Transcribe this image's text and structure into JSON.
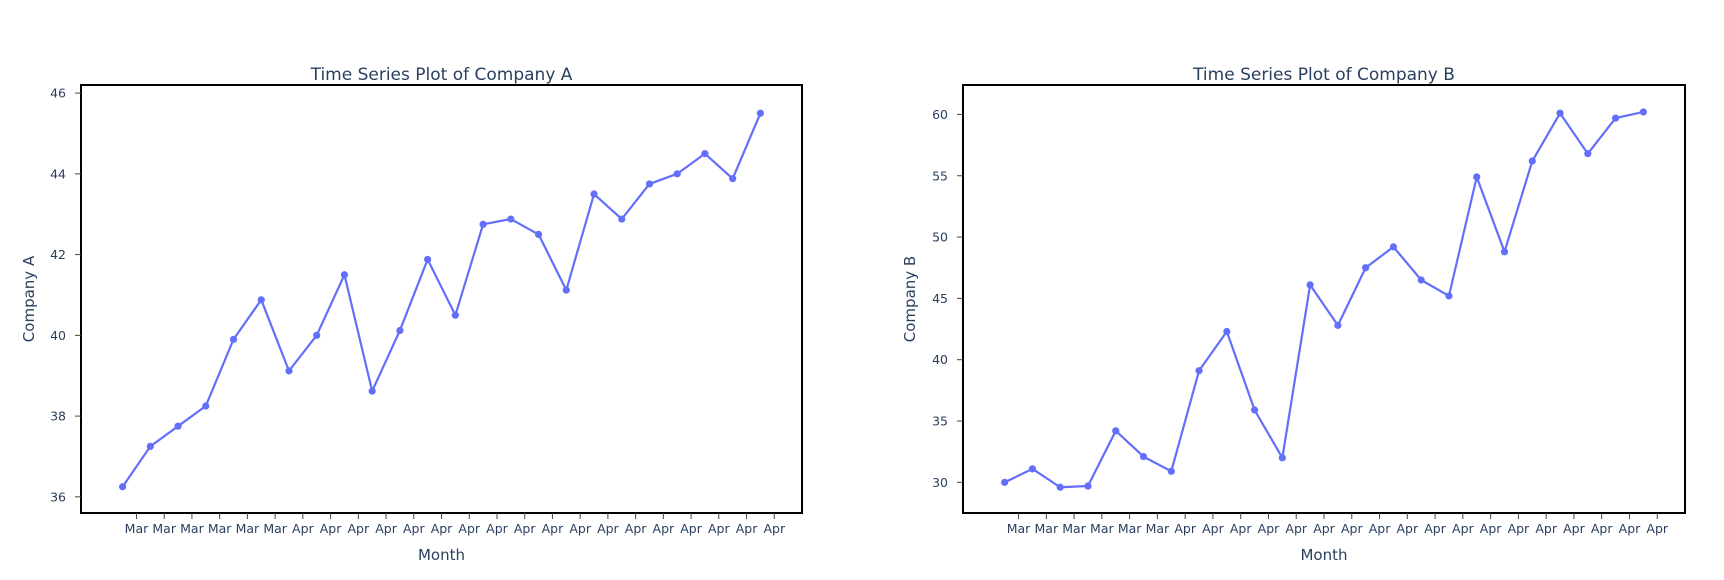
{
  "colors": {
    "series_line": "#636efa",
    "text": "#2a3f5f",
    "frame": "#000000",
    "background": "#ffffff"
  },
  "chart_data": [
    {
      "type": "line",
      "title": "Time Series Plot of Company A",
      "xlabel": "Month",
      "ylabel": "Company A",
      "ylim": [
        35.6,
        46.2
      ],
      "yticks": [
        36,
        38,
        40,
        42,
        44,
        46
      ],
      "x_tick_labels": [
        "Mar",
        "Mar",
        "Mar",
        "Mar",
        "Mar",
        "Mar",
        "Apr",
        "Apr",
        "Apr",
        "Apr",
        "Apr",
        "Apr",
        "Apr",
        "Apr",
        "Apr",
        "Apr",
        "Apr",
        "Apr",
        "Apr",
        "Apr",
        "Apr",
        "Apr",
        "Apr",
        "Apr"
      ],
      "grid": false,
      "markers": true,
      "series": [
        {
          "values": [
            36.25,
            37.25,
            37.75,
            38.25,
            39.9,
            40.88,
            39.12,
            40.0,
            41.5,
            38.62,
            40.12,
            41.88,
            40.5,
            42.75,
            42.88,
            42.5,
            41.12,
            43.5,
            42.88,
            43.75,
            44.0,
            44.5,
            43.88,
            45.5
          ]
        }
      ]
    },
    {
      "type": "line",
      "title": "Time Series Plot of Company B",
      "xlabel": "Month",
      "ylabel": "Company B",
      "ylim": [
        27.5,
        62.4
      ],
      "yticks": [
        30,
        35,
        40,
        45,
        50,
        55,
        60
      ],
      "x_tick_labels": [
        "Mar",
        "Mar",
        "Mar",
        "Mar",
        "Mar",
        "Mar",
        "Apr",
        "Apr",
        "Apr",
        "Apr",
        "Apr",
        "Apr",
        "Apr",
        "Apr",
        "Apr",
        "Apr",
        "Apr",
        "Apr",
        "Apr",
        "Apr",
        "Apr",
        "Apr",
        "Apr",
        "Apr"
      ],
      "grid": false,
      "markers": true,
      "series": [
        {
          "values": [
            30.0,
            31.1,
            29.6,
            29.7,
            34.2,
            32.1,
            30.9,
            39.1,
            42.3,
            35.9,
            32.0,
            46.1,
            42.8,
            47.5,
            49.2,
            46.5,
            45.2,
            54.9,
            48.8,
            56.2,
            60.1,
            56.8,
            59.7,
            60.2
          ]
        }
      ]
    }
  ]
}
